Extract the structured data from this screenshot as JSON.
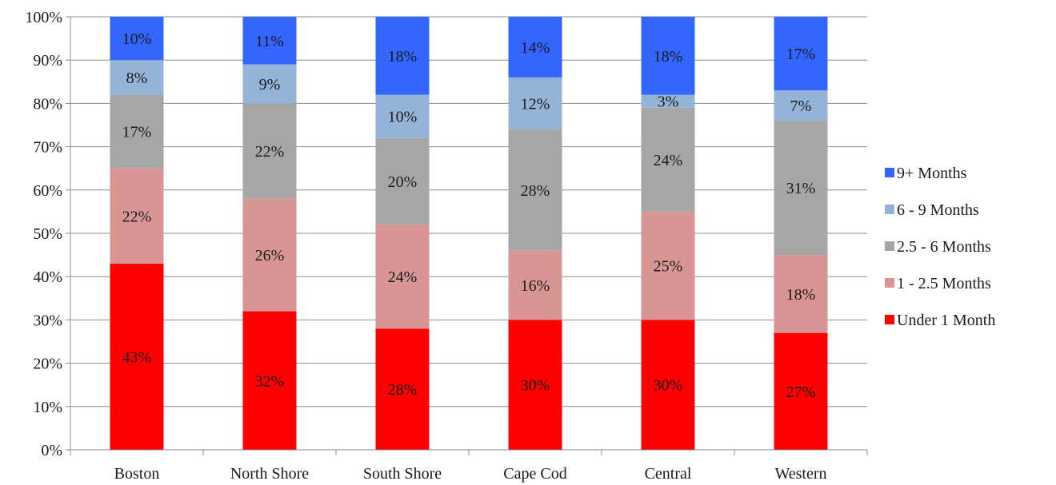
{
  "chart_data": {
    "type": "bar",
    "stacked": true,
    "percent": true,
    "categories": [
      "Boston",
      "North Shore",
      "South Shore",
      "Cape Cod",
      "Central",
      "Western"
    ],
    "series": [
      {
        "name": "Under 1 Month",
        "color": "#ff0000",
        "values": [
          43,
          32,
          28,
          30,
          30,
          27
        ],
        "labels": [
          "43%",
          "32%",
          "28%",
          "30%",
          "30%",
          "27%"
        ]
      },
      {
        "name": "1 - 2.5 Months",
        "color": "#d99594",
        "values": [
          22,
          26,
          24,
          16,
          25,
          18
        ],
        "labels": [
          "22%",
          "26%",
          "24%",
          "16%",
          "25%",
          "18%"
        ]
      },
      {
        "name": "2.5 - 6 Months",
        "color": "#a6a6a6",
        "values": [
          17,
          22,
          20,
          28,
          24,
          31
        ],
        "labels": [
          "17%",
          "22%",
          "20%",
          "28%",
          "24%",
          "31%"
        ]
      },
      {
        "name": "6 - 9 Months",
        "color": "#95b3d7",
        "values": [
          8,
          9,
          10,
          12,
          3,
          7
        ],
        "labels": [
          "8%",
          "9%",
          "10%",
          "12%",
          "3%",
          "7%"
        ]
      },
      {
        "name": "9+ Months",
        "color": "#3366ff",
        "values": [
          10,
          11,
          18,
          14,
          18,
          17
        ],
        "labels": [
          "10%",
          "11%",
          "18%",
          "14%",
          "18%",
          "17%"
        ]
      }
    ],
    "ylim": [
      0,
      100
    ],
    "yticks": [
      "0%",
      "10%",
      "20%",
      "30%",
      "40%",
      "50%",
      "60%",
      "70%",
      "80%",
      "90%",
      "100%"
    ],
    "grid": true,
    "legend_position": "right",
    "legend_order": [
      "9+ Months",
      "6 - 9 Months",
      "2.5 - 6 Months",
      "1 - 2.5 Months",
      "Under 1 Month"
    ]
  }
}
